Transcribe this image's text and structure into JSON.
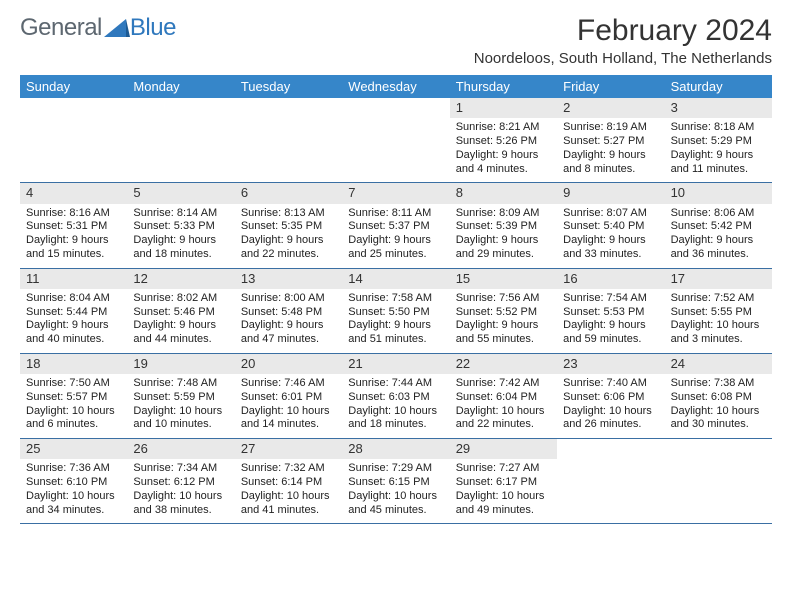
{
  "brand": {
    "part1": "General",
    "part2": "Blue",
    "accent_color": "#2f78bd",
    "muted_color": "#5d6770",
    "triangle_fill": "#2f78bd"
  },
  "header": {
    "title": "February 2024",
    "location": "Noordeloos, South Holland, The Netherlands"
  },
  "colors": {
    "header_bg": "#3686c9",
    "header_fg": "#ffffff",
    "daynum_bg": "#e9e9e9",
    "row_border": "#3a6fa3",
    "page_bg": "#ffffff",
    "text": "#222222"
  },
  "fonts": {
    "family": "Arial",
    "title_pt": 30,
    "subtitle_pt": 15,
    "dayhead_pt": 13,
    "body_pt": 11,
    "daynum_pt": 13
  },
  "layout": {
    "columns": 7,
    "weeks": 5,
    "first_day_column": 4
  },
  "day_names": [
    "Sunday",
    "Monday",
    "Tuesday",
    "Wednesday",
    "Thursday",
    "Friday",
    "Saturday"
  ],
  "days": [
    {
      "n": 1,
      "sr": "8:21 AM",
      "ss": "5:26 PM",
      "dl": "9 hours and 4 minutes."
    },
    {
      "n": 2,
      "sr": "8:19 AM",
      "ss": "5:27 PM",
      "dl": "9 hours and 8 minutes."
    },
    {
      "n": 3,
      "sr": "8:18 AM",
      "ss": "5:29 PM",
      "dl": "9 hours and 11 minutes."
    },
    {
      "n": 4,
      "sr": "8:16 AM",
      "ss": "5:31 PM",
      "dl": "9 hours and 15 minutes."
    },
    {
      "n": 5,
      "sr": "8:14 AM",
      "ss": "5:33 PM",
      "dl": "9 hours and 18 minutes."
    },
    {
      "n": 6,
      "sr": "8:13 AM",
      "ss": "5:35 PM",
      "dl": "9 hours and 22 minutes."
    },
    {
      "n": 7,
      "sr": "8:11 AM",
      "ss": "5:37 PM",
      "dl": "9 hours and 25 minutes."
    },
    {
      "n": 8,
      "sr": "8:09 AM",
      "ss": "5:39 PM",
      "dl": "9 hours and 29 minutes."
    },
    {
      "n": 9,
      "sr": "8:07 AM",
      "ss": "5:40 PM",
      "dl": "9 hours and 33 minutes."
    },
    {
      "n": 10,
      "sr": "8:06 AM",
      "ss": "5:42 PM",
      "dl": "9 hours and 36 minutes."
    },
    {
      "n": 11,
      "sr": "8:04 AM",
      "ss": "5:44 PM",
      "dl": "9 hours and 40 minutes."
    },
    {
      "n": 12,
      "sr": "8:02 AM",
      "ss": "5:46 PM",
      "dl": "9 hours and 44 minutes."
    },
    {
      "n": 13,
      "sr": "8:00 AM",
      "ss": "5:48 PM",
      "dl": "9 hours and 47 minutes."
    },
    {
      "n": 14,
      "sr": "7:58 AM",
      "ss": "5:50 PM",
      "dl": "9 hours and 51 minutes."
    },
    {
      "n": 15,
      "sr": "7:56 AM",
      "ss": "5:52 PM",
      "dl": "9 hours and 55 minutes."
    },
    {
      "n": 16,
      "sr": "7:54 AM",
      "ss": "5:53 PM",
      "dl": "9 hours and 59 minutes."
    },
    {
      "n": 17,
      "sr": "7:52 AM",
      "ss": "5:55 PM",
      "dl": "10 hours and 3 minutes."
    },
    {
      "n": 18,
      "sr": "7:50 AM",
      "ss": "5:57 PM",
      "dl": "10 hours and 6 minutes."
    },
    {
      "n": 19,
      "sr": "7:48 AM",
      "ss": "5:59 PM",
      "dl": "10 hours and 10 minutes."
    },
    {
      "n": 20,
      "sr": "7:46 AM",
      "ss": "6:01 PM",
      "dl": "10 hours and 14 minutes."
    },
    {
      "n": 21,
      "sr": "7:44 AM",
      "ss": "6:03 PM",
      "dl": "10 hours and 18 minutes."
    },
    {
      "n": 22,
      "sr": "7:42 AM",
      "ss": "6:04 PM",
      "dl": "10 hours and 22 minutes."
    },
    {
      "n": 23,
      "sr": "7:40 AM",
      "ss": "6:06 PM",
      "dl": "10 hours and 26 minutes."
    },
    {
      "n": 24,
      "sr": "7:38 AM",
      "ss": "6:08 PM",
      "dl": "10 hours and 30 minutes."
    },
    {
      "n": 25,
      "sr": "7:36 AM",
      "ss": "6:10 PM",
      "dl": "10 hours and 34 minutes."
    },
    {
      "n": 26,
      "sr": "7:34 AM",
      "ss": "6:12 PM",
      "dl": "10 hours and 38 minutes."
    },
    {
      "n": 27,
      "sr": "7:32 AM",
      "ss": "6:14 PM",
      "dl": "10 hours and 41 minutes."
    },
    {
      "n": 28,
      "sr": "7:29 AM",
      "ss": "6:15 PM",
      "dl": "10 hours and 45 minutes."
    },
    {
      "n": 29,
      "sr": "7:27 AM",
      "ss": "6:17 PM",
      "dl": "10 hours and 49 minutes."
    }
  ],
  "labels": {
    "sunrise": "Sunrise: ",
    "sunset": "Sunset: ",
    "daylight": "Daylight: "
  }
}
